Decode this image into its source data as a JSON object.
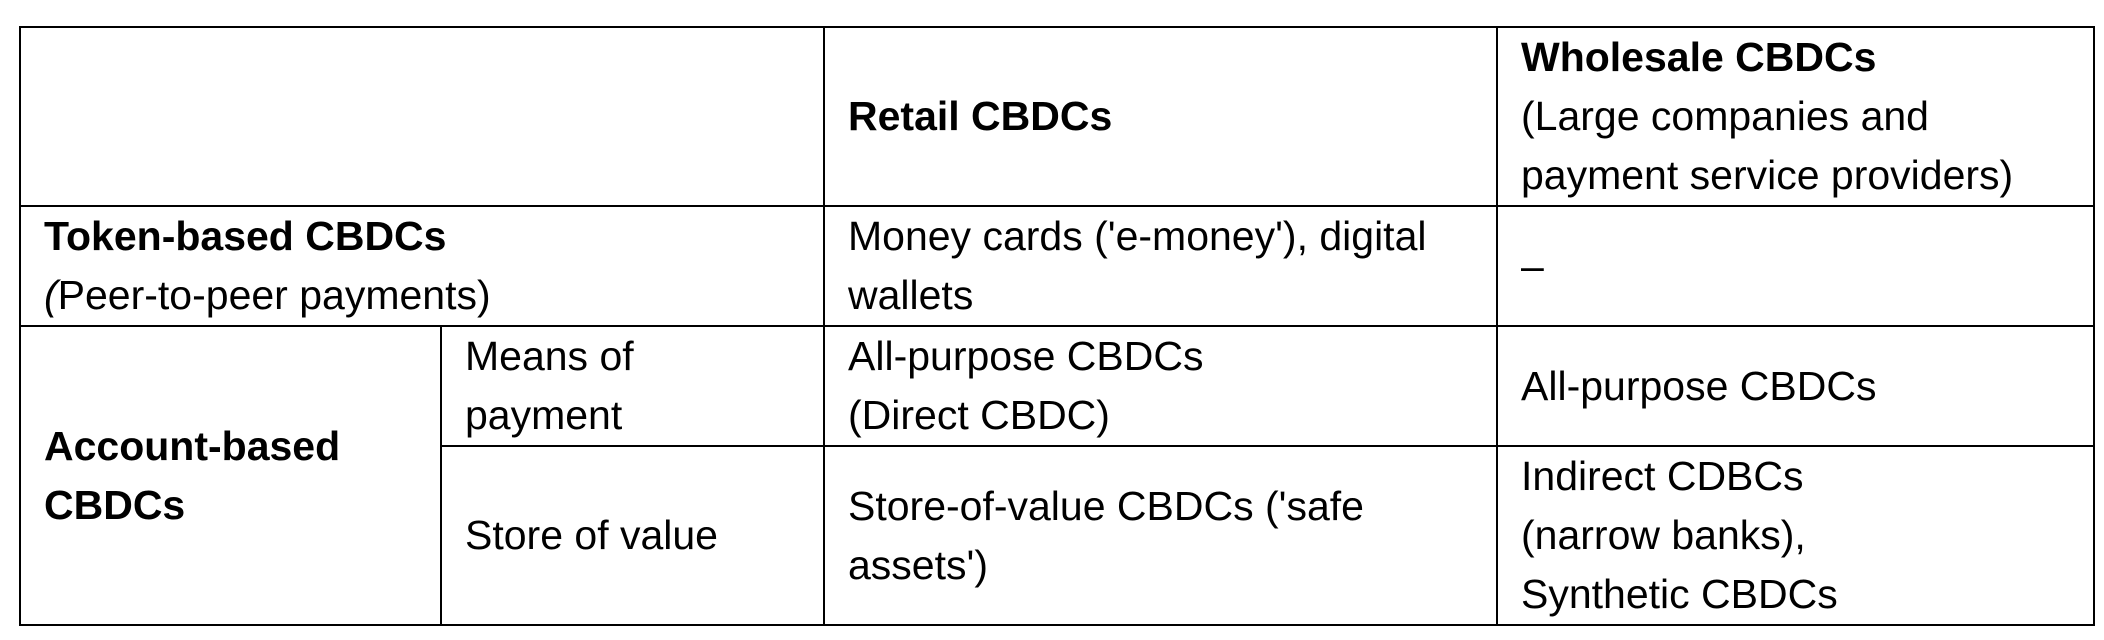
{
  "header": {
    "retail": "Retail CBDCs",
    "wholesale_title": "Wholesale CBDCs",
    "wholesale_sub_line1": "(Large companies and",
    "wholesale_sub_line2": "payment service providers)"
  },
  "token_row": {
    "title": "Token-based CBDCs",
    "sub_paren": "(",
    "sub_rest": "Peer-to-peer payments)",
    "retail_line1": "Money cards ('e-money'), digital",
    "retail_line2": "wallets",
    "wholesale": "–"
  },
  "account_rows": {
    "title_line1": "Account-based",
    "title_line2": "CBDCs",
    "means": {
      "label_line1": "Means of",
      "label_line2": "payment",
      "retail_line1": "All-purpose CBDCs",
      "retail_line2": "(Direct CBDC)",
      "wholesale": "All-purpose CBDCs"
    },
    "store": {
      "label": "Store of value",
      "retail_line1": "Store-of-value CBDCs ('safe",
      "retail_line2": "assets')",
      "wholesale_line1": "Indirect CDBCs",
      "wholesale_line2": "(narrow banks),",
      "wholesale_line3": "Synthetic CBDCs"
    }
  }
}
